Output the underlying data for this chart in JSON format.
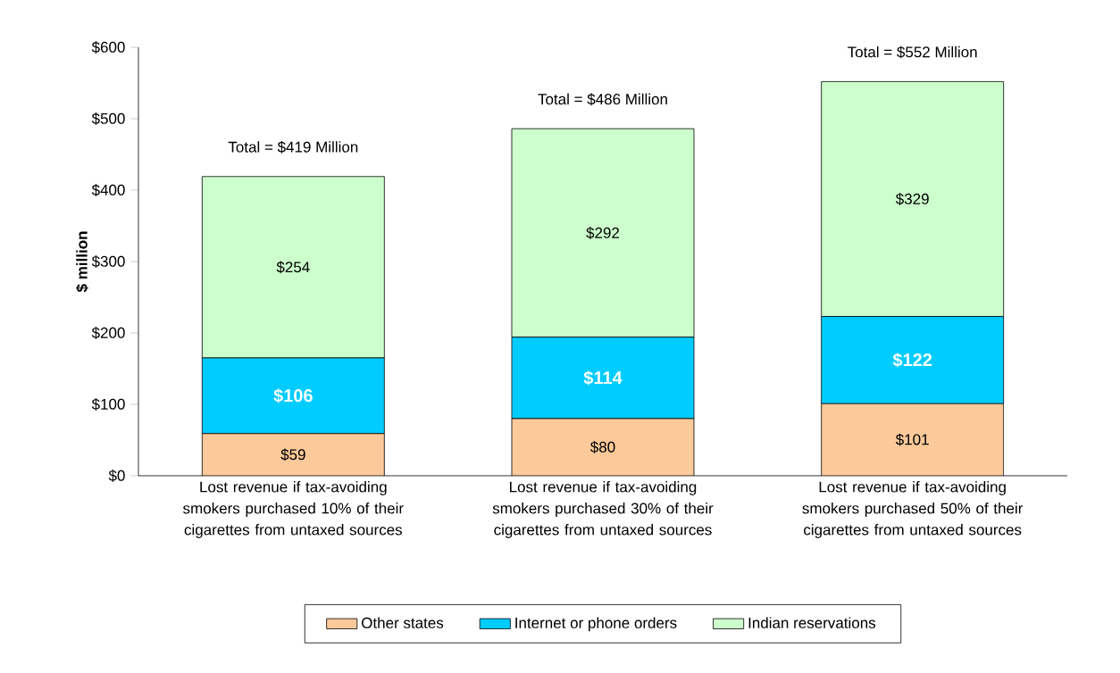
{
  "chart_data": {
    "type": "bar",
    "stacked": true,
    "ylabel": "$ million",
    "categories": [
      "Lost revenue if tax-avoiding smokers purchased 10% of their cigarettes from untaxed sources",
      "Lost revenue if tax-avoiding smokers purchased 30% of their cigarettes from untaxed sources",
      "Lost revenue if tax-avoiding smokers purchased 50% of their cigarettes from untaxed sources"
    ],
    "series": [
      {
        "name": "Other states",
        "color": "#fbc99a",
        "values": [
          59,
          80,
          101
        ],
        "value_labels": [
          "$59",
          "$80",
          "$101"
        ]
      },
      {
        "name": "Internet or phone orders",
        "color": "#00ccff",
        "values": [
          106,
          114,
          122
        ],
        "value_labels": [
          "$106",
          "$114",
          "$122"
        ]
      },
      {
        "name": "Indian reservations",
        "color": "#ccffcc",
        "values": [
          254,
          292,
          329
        ],
        "value_labels": [
          "$254",
          "$292",
          "$329"
        ]
      }
    ],
    "totals": [
      "Total = $419 Million",
      "Total = $486 Million",
      "Total = $552 Million"
    ],
    "ylim": [
      0,
      600
    ],
    "yticks": [
      {
        "value": 0,
        "label": "$0"
      },
      {
        "value": 100,
        "label": "$100"
      },
      {
        "value": 200,
        "label": "$200"
      },
      {
        "value": 300,
        "label": "$300"
      },
      {
        "value": 400,
        "label": "$400"
      },
      {
        "value": 500,
        "label": "$500"
      },
      {
        "value": 600,
        "label": "$600"
      }
    ],
    "grid": false,
    "legend": "bottom"
  }
}
